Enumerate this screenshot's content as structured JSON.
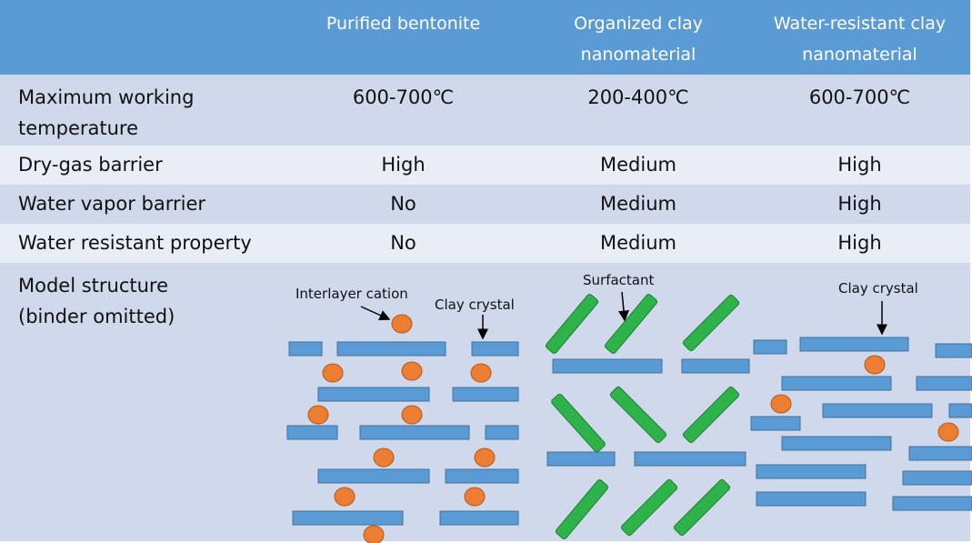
{
  "table": {
    "header": [
      "Purified bentonite",
      "Organized clay nanomaterial",
      "Water-resistant clay nanomaterial"
    ],
    "rows": [
      {
        "label": "Maximum working temperature",
        "cells": [
          "600-700℃",
          "200-400℃",
          "600-700℃"
        ]
      },
      {
        "label": "Dry-gas barrier",
        "cells": [
          "High",
          "Medium",
          "High"
        ]
      },
      {
        "label": "Water vapor barrier",
        "cells": [
          "No",
          "Medium",
          "High"
        ]
      },
      {
        "label": "Water resistant property",
        "cells": [
          "No",
          "Medium",
          "High"
        ]
      },
      {
        "label": "Model structure (binder omitted)"
      }
    ],
    "diagram_labels": [
      "Interlayer cation",
      "Clay crystal",
      "Surfactant",
      "Clay crystal"
    ]
  }
}
